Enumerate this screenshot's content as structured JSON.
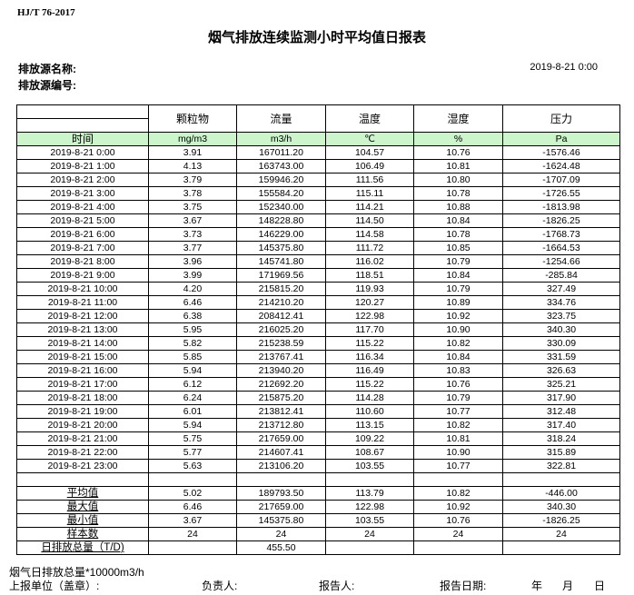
{
  "header": {
    "standard": "HJ/T  76-2017",
    "title": "烟气排放连续监测小时平均值日报表",
    "source_name_label": "排放源名称:",
    "source_code_label": "排放源编号:",
    "report_datetime": "2019-8-21  0:00"
  },
  "table": {
    "columns": [
      "颗粒物",
      "流量",
      "温度",
      "湿度",
      "压力"
    ],
    "time_label": "时间",
    "units": [
      "mg/m3",
      "m3/h",
      "℃",
      "%",
      "Pa"
    ],
    "rows": [
      [
        "2019-8-21  0:00",
        "3.91",
        "167011.20",
        "104.57",
        "10.76",
        "-1576.46"
      ],
      [
        "2019-8-21  1:00",
        "4.13",
        "163743.00",
        "106.49",
        "10.81",
        "-1624.48"
      ],
      [
        "2019-8-21  2:00",
        "3.79",
        "159946.20",
        "111.56",
        "10.80",
        "-1707.09"
      ],
      [
        "2019-8-21  3:00",
        "3.78",
        "155584.20",
        "115.11",
        "10.78",
        "-1726.55"
      ],
      [
        "2019-8-21  4:00",
        "3.75",
        "152340.00",
        "114.21",
        "10.88",
        "-1813.98"
      ],
      [
        "2019-8-21  5:00",
        "3.67",
        "148228.80",
        "114.50",
        "10.84",
        "-1826.25"
      ],
      [
        "2019-8-21  6:00",
        "3.73",
        "146229.00",
        "114.58",
        "10.78",
        "-1768.73"
      ],
      [
        "2019-8-21  7:00",
        "3.77",
        "145375.80",
        "111.72",
        "10.85",
        "-1664.53"
      ],
      [
        "2019-8-21  8:00",
        "3.96",
        "145741.80",
        "116.02",
        "10.79",
        "-1254.66"
      ],
      [
        "2019-8-21  9:00",
        "3.99",
        "171969.56",
        "118.51",
        "10.84",
        "-285.84"
      ],
      [
        "2019-8-21  10:00",
        "4.20",
        "215815.20",
        "119.93",
        "10.79",
        "327.49"
      ],
      [
        "2019-8-21  11:00",
        "6.46",
        "214210.20",
        "120.27",
        "10.89",
        "334.76"
      ],
      [
        "2019-8-21  12:00",
        "6.38",
        "208412.41",
        "122.98",
        "10.92",
        "323.75"
      ],
      [
        "2019-8-21  13:00",
        "5.95",
        "216025.20",
        "117.70",
        "10.90",
        "340.30"
      ],
      [
        "2019-8-21  14:00",
        "5.82",
        "215238.59",
        "115.22",
        "10.82",
        "330.09"
      ],
      [
        "2019-8-21  15:00",
        "5.85",
        "213767.41",
        "116.34",
        "10.84",
        "331.59"
      ],
      [
        "2019-8-21  16:00",
        "5.94",
        "213940.20",
        "116.49",
        "10.83",
        "326.63"
      ],
      [
        "2019-8-21  17:00",
        "6.12",
        "212692.20",
        "115.22",
        "10.76",
        "325.21"
      ],
      [
        "2019-8-21  18:00",
        "6.24",
        "215875.20",
        "114.28",
        "10.79",
        "317.90"
      ],
      [
        "2019-8-21  19:00",
        "6.01",
        "213812.41",
        "110.60",
        "10.77",
        "312.48"
      ],
      [
        "2019-8-21  20:00",
        "5.94",
        "213712.80",
        "113.15",
        "10.82",
        "317.40"
      ],
      [
        "2019-8-21  21:00",
        "5.75",
        "217659.00",
        "109.22",
        "10.81",
        "318.24"
      ],
      [
        "2019-8-21  22:00",
        "5.77",
        "214607.41",
        "108.67",
        "10.90",
        "315.89"
      ],
      [
        "2019-8-21  23:00",
        "5.63",
        "213106.20",
        "103.55",
        "10.77",
        "322.81"
      ]
    ],
    "summary": [
      [
        "平均值",
        "5.02",
        "189793.50",
        "113.79",
        "10.82",
        "-446.00"
      ],
      [
        "最大值",
        "6.46",
        "217659.00",
        "122.98",
        "10.92",
        "340.30"
      ],
      [
        "最小值",
        "3.67",
        "145375.80",
        "103.55",
        "10.76",
        "-1826.25"
      ],
      [
        "样本数",
        "24",
        "24",
        "24",
        "24",
        "24"
      ]
    ],
    "daily_total": [
      "日排放总量（T/D)",
      "",
      "455.50",
      "",
      "",
      ""
    ]
  },
  "footer": {
    "note": "烟气日排放总量*10000m3/h",
    "unit_label": "上报单位（盖章）:",
    "responsible_label": "负责人:",
    "reporter_label": "报告人:",
    "report_date_label": "报告日期:",
    "year": "年",
    "month": "月",
    "day": "日"
  }
}
